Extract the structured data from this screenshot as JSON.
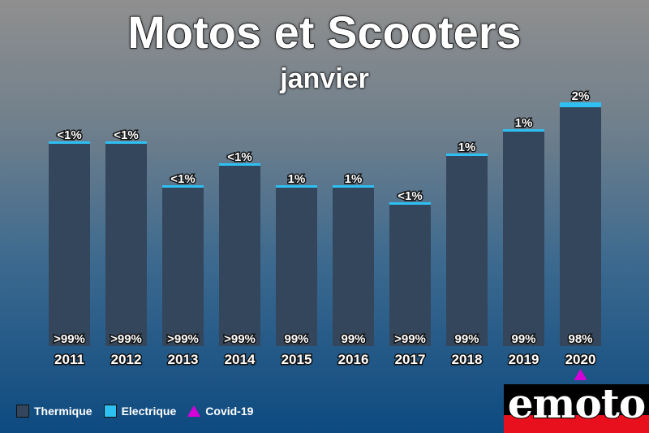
{
  "colors": {
    "thermique": "#34465b",
    "electrique": "#2ec0f2",
    "covid": "#d800d8"
  },
  "legend": {
    "thermique": "Thermique",
    "electrique": "Electrique",
    "covid": "Covid-19"
  },
  "logo": {
    "text": "emoto"
  },
  "chart_data": {
    "type": "bar",
    "stacked": true,
    "title": "Motos et Scooters",
    "subtitle": "janvier",
    "categories": [
      "2011",
      "2012",
      "2013",
      "2014",
      "2015",
      "2016",
      "2017",
      "2018",
      "2019",
      "2020"
    ],
    "totals_relative": [
      0.84,
      0.84,
      0.66,
      0.75,
      0.66,
      0.66,
      0.59,
      0.79,
      0.89,
      1.0
    ],
    "series": [
      {
        "name": "Thermique",
        "share": [
          99.6,
          99.6,
          99.6,
          99.6,
          99,
          99,
          99.6,
          99,
          99,
          98
        ],
        "labels": [
          ">99%",
          ">99%",
          ">99%",
          ">99%",
          "99%",
          "99%",
          ">99%",
          "99%",
          "99%",
          "98%"
        ]
      },
      {
        "name": "Electrique",
        "share": [
          0.4,
          0.4,
          0.4,
          0.4,
          1,
          1,
          0.4,
          1,
          1,
          2
        ],
        "labels": [
          "<1%",
          "<1%",
          "<1%",
          "<1%",
          "1%",
          "1%",
          "<1%",
          "1%",
          "1%",
          "2%"
        ]
      }
    ],
    "annotations": [
      {
        "category": "2020",
        "marker": "triangle",
        "series": "Covid-19"
      }
    ],
    "legend_position": "bottom-left",
    "grid": false
  }
}
